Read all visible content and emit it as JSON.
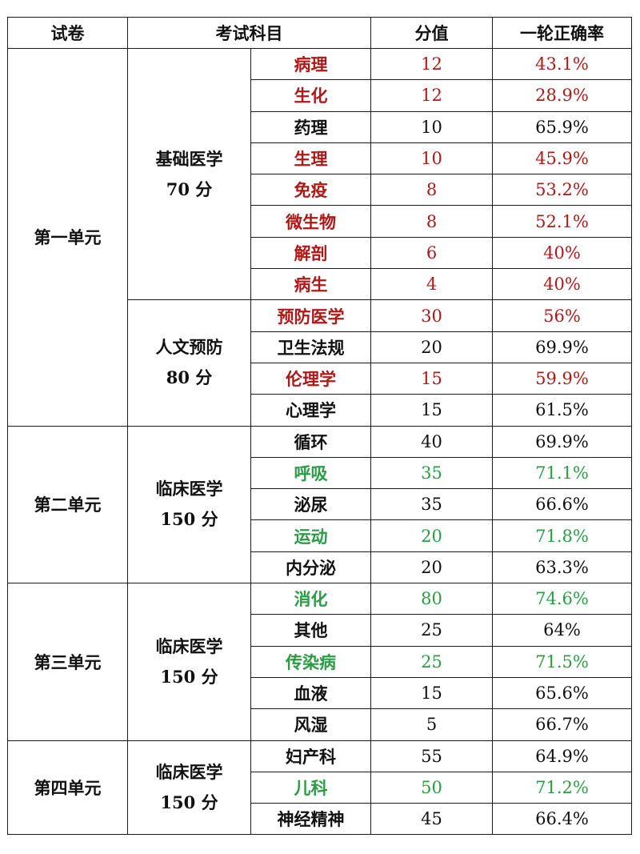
{
  "colors": {
    "highlight_red": "#b01818",
    "highlight_green": "#2c9c44",
    "normal": "#111111",
    "border": "#1a1a1a"
  },
  "header": {
    "paper": "试卷",
    "subject": "考试科目",
    "score": "分值",
    "rate": "一轮正确率"
  },
  "units": [
    {
      "name": "第一单元",
      "groups": [
        {
          "name": "基础医学",
          "points": "70 分",
          "rows": [
            {
              "subject": "病理",
              "score": "12",
              "rate": "43.1%",
              "color": "red"
            },
            {
              "subject": "生化",
              "score": "12",
              "rate": "28.9%",
              "color": "red"
            },
            {
              "subject": "药理",
              "score": "10",
              "rate": "65.9%",
              "color": "normal"
            },
            {
              "subject": "生理",
              "score": "10",
              "rate": "45.9%",
              "color": "red"
            },
            {
              "subject": "免疫",
              "score": "8",
              "rate": "53.2%",
              "color": "red"
            },
            {
              "subject": "微生物",
              "score": "8",
              "rate": "52.1%",
              "color": "red"
            },
            {
              "subject": "解剖",
              "score": "6",
              "rate": "40%",
              "color": "red"
            },
            {
              "subject": "病生",
              "score": "4",
              "rate": "40%",
              "color": "red"
            }
          ]
        },
        {
          "name": "人文预防",
          "points": "80 分",
          "rows": [
            {
              "subject": "预防医学",
              "score": "30",
              "rate": "56%",
              "color": "red"
            },
            {
              "subject": "卫生法规",
              "score": "20",
              "rate": "69.9%",
              "color": "normal"
            },
            {
              "subject": "伦理学",
              "score": "15",
              "rate": "59.9%",
              "color": "red"
            },
            {
              "subject": "心理学",
              "score": "15",
              "rate": "61.5%",
              "color": "normal"
            }
          ]
        }
      ]
    },
    {
      "name": "第二单元",
      "groups": [
        {
          "name": "临床医学",
          "points": "150 分",
          "rows": [
            {
              "subject": "循环",
              "score": "40",
              "rate": "69.9%",
              "color": "normal"
            },
            {
              "subject": "呼吸",
              "score": "35",
              "rate": "71.1%",
              "color": "green"
            },
            {
              "subject": "泌尿",
              "score": "35",
              "rate": "66.6%",
              "color": "normal"
            },
            {
              "subject": "运动",
              "score": "20",
              "rate": "71.8%",
              "color": "green"
            },
            {
              "subject": "内分泌",
              "score": "20",
              "rate": "63.3%",
              "color": "normal"
            }
          ]
        }
      ]
    },
    {
      "name": "第三单元",
      "groups": [
        {
          "name": "临床医学",
          "points": "150 分",
          "rows": [
            {
              "subject": "消化",
              "score": "80",
              "rate": "74.6%",
              "color": "green"
            },
            {
              "subject": "其他",
              "score": "25",
              "rate": "64%",
              "color": "normal"
            },
            {
              "subject": "传染病",
              "score": "25",
              "rate": "71.5%",
              "color": "green"
            },
            {
              "subject": "血液",
              "score": "15",
              "rate": "65.6%",
              "color": "normal"
            },
            {
              "subject": "风湿",
              "score": "5",
              "rate": "66.7%",
              "color": "normal"
            }
          ]
        }
      ]
    },
    {
      "name": "第四单元",
      "groups": [
        {
          "name": "临床医学",
          "points": "150 分",
          "rows": [
            {
              "subject": "妇产科",
              "score": "55",
              "rate": "64.9%",
              "color": "normal"
            },
            {
              "subject": "儿科",
              "score": "50",
              "rate": "71.2%",
              "color": "green"
            },
            {
              "subject": "神经精神",
              "score": "45",
              "rate": "66.4%",
              "color": "normal"
            }
          ]
        }
      ]
    }
  ]
}
